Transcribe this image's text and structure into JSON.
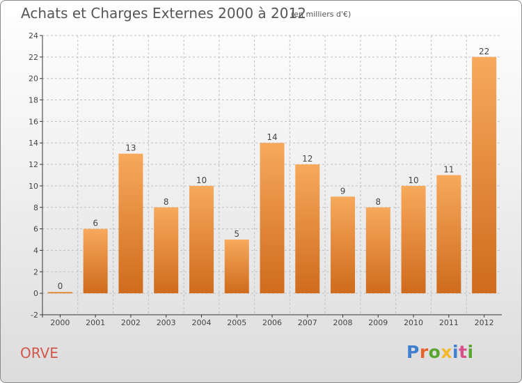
{
  "header": {
    "title": "Achats et Charges Externes 2000 à 2012",
    "subtitle": "(en milliers d'€)"
  },
  "footer": {
    "city": "ORVE",
    "brand": "Proxiti",
    "brand_colors": [
      "#3f7fd0",
      "#e8622b",
      "#5aa532",
      "#f2b82a",
      "#3f7fd0",
      "#d94f8b",
      "#5aa532"
    ]
  },
  "colors": {
    "bar_top": "#f7a95c",
    "bar_bottom": "#cf6b1c",
    "axis": "#333333",
    "grid": "#bfbfbf"
  },
  "chart_data": {
    "type": "bar",
    "categories": [
      "2000",
      "2001",
      "2002",
      "2003",
      "2004",
      "2005",
      "2006",
      "2007",
      "2008",
      "2009",
      "2010",
      "2011",
      "2012"
    ],
    "values": [
      0,
      6,
      13,
      8,
      10,
      5,
      14,
      12,
      9,
      8,
      10,
      11,
      22
    ],
    "ylim": [
      -2,
      24
    ],
    "yticks": [
      -2,
      0,
      2,
      4,
      6,
      8,
      10,
      12,
      14,
      16,
      18,
      20,
      22,
      24
    ],
    "grid": true
  }
}
